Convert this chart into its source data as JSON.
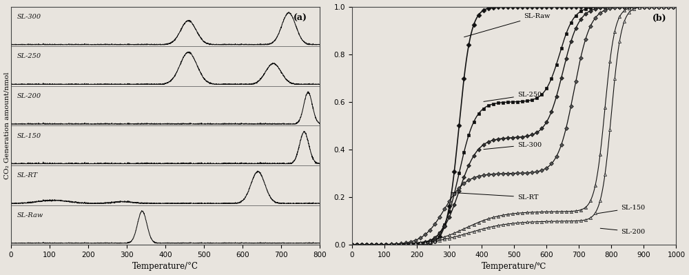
{
  "panel_a_label": "(a)",
  "panel_b_label": "(b)",
  "panel_a_xlabel": "Temperature/°C",
  "panel_a_ylabel": "CO₂ Generation amount/nmol",
  "panel_b_xlabel": "Temperature/℃",
  "panel_a_xlim": [
    0,
    800
  ],
  "panel_a_xticks": [
    0,
    100,
    200,
    300,
    400,
    500,
    600,
    700,
    800
  ],
  "panel_b_xlim": [
    0,
    1000
  ],
  "panel_b_xticks": [
    0,
    100,
    200,
    300,
    400,
    500,
    600,
    700,
    800,
    900,
    1000
  ],
  "panel_b_ylim": [
    0.0,
    1.0
  ],
  "panel_b_yticks": [
    0.0,
    0.2,
    0.4,
    0.6,
    0.8,
    1.0
  ],
  "background_color": "#e8e4de",
  "line_color": "#111111"
}
